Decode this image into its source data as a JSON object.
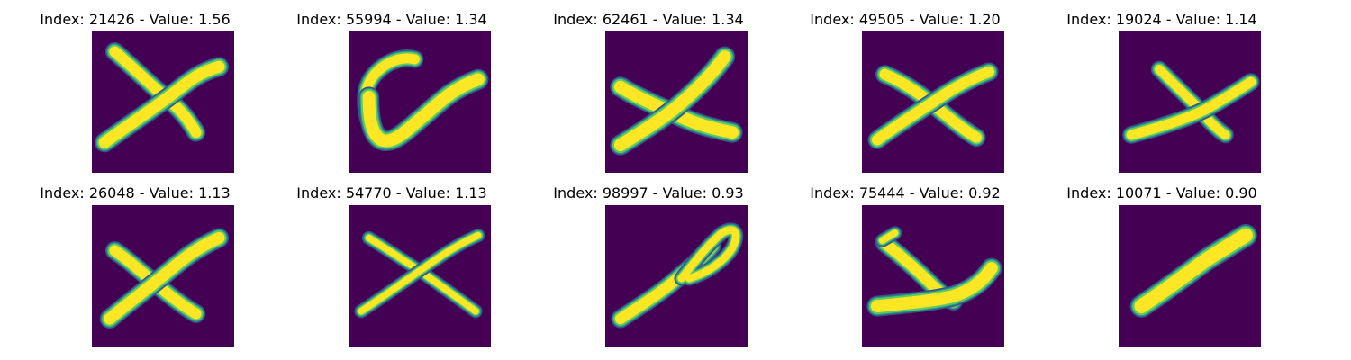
{
  "colors": {
    "background": "#440154",
    "stroke_mid": "#21918c",
    "stroke_edge": "#3b528b",
    "stroke_core": "#fde725",
    "stroke_near_core": "#5ec962"
  },
  "panels": [
    {
      "title": "Index: 21426 - Value: 1.56",
      "glyph": "x-shape"
    },
    {
      "title": "Index: 55994 - Value: 1.34",
      "glyph": "v-shape"
    },
    {
      "title": "Index: 62461 - Value: 1.34",
      "glyph": "x-shape"
    },
    {
      "title": "Index: 49505 - Value: 1.20",
      "glyph": "x-shape"
    },
    {
      "title": "Index: 19024 - Value: 1.14",
      "glyph": "x-shape"
    },
    {
      "title": "Index: 26048 - Value: 1.13",
      "glyph": "x-shape"
    },
    {
      "title": "Index: 54770 - Value: 1.13",
      "glyph": "x-shape"
    },
    {
      "title": "Index: 98997 - Value: 0.93",
      "glyph": "loop-stroke"
    },
    {
      "title": "Index: 75444 - Value: 0.92",
      "glyph": "y-shape"
    },
    {
      "title": "Index: 10071 - Value: 0.90",
      "glyph": "diagonal-stroke"
    }
  ]
}
